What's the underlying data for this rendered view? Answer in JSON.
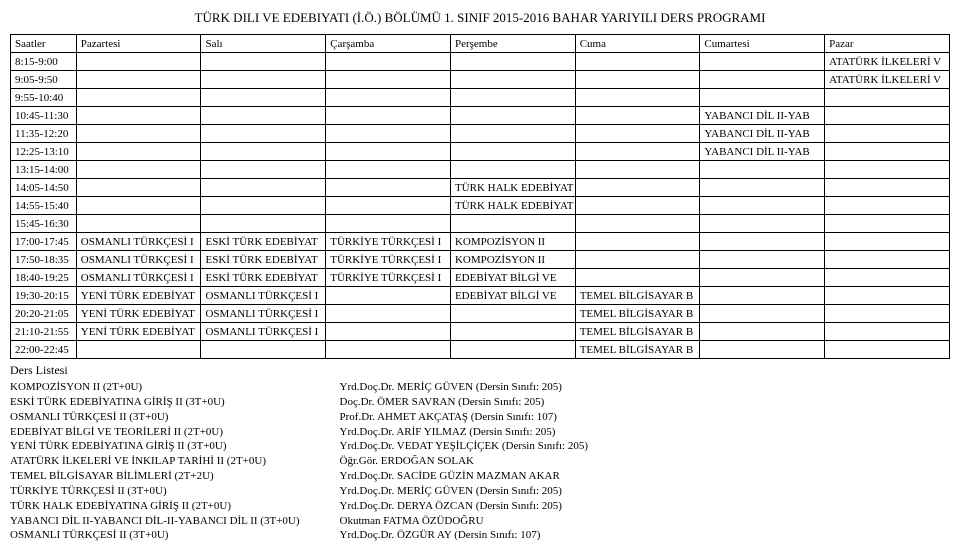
{
  "title": "TÜRK DILI VE EDEBIYATI (İ.Ö.) BÖLÜMÜ 1. SINIF 2015-2016 BAHAR YARIYILI DERS PROGRAMI",
  "header": {
    "time": "Saatler",
    "d1": "Pazartesi",
    "d2": "Salı",
    "d3": "Çarşamba",
    "d4": "Perşembe",
    "d5": "Cuma",
    "d6": "Cumartesi",
    "d7": "Pazar"
  },
  "rows": {
    "r0": {
      "time": "8:15-9:00",
      "c1": "",
      "c2": "",
      "c3": "",
      "c4": "",
      "c5": "",
      "c6": "",
      "c7": "ATATÜRK İLKELERİ V"
    },
    "r1": {
      "time": "9:05-9:50",
      "c1": "",
      "c2": "",
      "c3": "",
      "c4": "",
      "c5": "",
      "c6": "",
      "c7": "ATATÜRK İLKELERİ V"
    },
    "r2": {
      "time": "9:55-10:40",
      "c1": "",
      "c2": "",
      "c3": "",
      "c4": "",
      "c5": "",
      "c6": "",
      "c7": ""
    },
    "r3": {
      "time": "10:45-11:30",
      "c1": "",
      "c2": "",
      "c3": "",
      "c4": "",
      "c5": "",
      "c6": "YABANCI DİL II-YAB",
      "c7": ""
    },
    "r4": {
      "time": "11:35-12:20",
      "c1": "",
      "c2": "",
      "c3": "",
      "c4": "",
      "c5": "",
      "c6": "YABANCI DİL II-YAB",
      "c7": ""
    },
    "r5": {
      "time": "12:25-13:10",
      "c1": "",
      "c2": "",
      "c3": "",
      "c4": "",
      "c5": "",
      "c6": "YABANCI DİL II-YAB",
      "c7": ""
    },
    "r6": {
      "time": "13:15-14:00",
      "c1": "",
      "c2": "",
      "c3": "",
      "c4": "",
      "c5": "",
      "c6": "",
      "c7": ""
    },
    "r7": {
      "time": "14:05-14:50",
      "c1": "",
      "c2": "",
      "c3": "",
      "c4": "TÜRK HALK EDEBİYAT",
      "c5": "",
      "c6": "",
      "c7": ""
    },
    "r8": {
      "time": "14:55-15:40",
      "c1": "",
      "c2": "",
      "c3": "",
      "c4": "TÜRK HALK EDEBİYAT",
      "c5": "",
      "c6": "",
      "c7": ""
    },
    "r9": {
      "time": "15:45-16:30",
      "c1": "",
      "c2": "",
      "c3": "",
      "c4": "",
      "c5": "",
      "c6": "",
      "c7": ""
    },
    "r10": {
      "time": "17:00-17:45",
      "c1": "OSMANLI TÜRKÇESİ I",
      "c2": "ESKİ TÜRK EDEBİYAT",
      "c3": "TÜRKİYE TÜRKÇESİ I",
      "c4": "KOMPOZİSYON II",
      "c5": "",
      "c6": "",
      "c7": ""
    },
    "r11": {
      "time": "17:50-18:35",
      "c1": "OSMANLI TÜRKÇESİ I",
      "c2": "ESKİ TÜRK EDEBİYAT",
      "c3": "TÜRKİYE TÜRKÇESİ I",
      "c4": "KOMPOZİSYON II",
      "c5": "",
      "c6": "",
      "c7": ""
    },
    "r12": {
      "time": "18:40-19:25",
      "c1": "OSMANLI TÜRKÇESİ I",
      "c2": "ESKİ TÜRK EDEBİYAT",
      "c3": "TÜRKİYE TÜRKÇESİ I",
      "c4": "EDEBİYAT BİLGİ VE",
      "c5": "",
      "c6": "",
      "c7": ""
    },
    "r13": {
      "time": "19:30-20:15",
      "c1": "YENİ TÜRK EDEBİYAT",
      "c2": "OSMANLI TÜRKÇESİ I",
      "c3": "",
      "c4": "EDEBİYAT BİLGİ VE",
      "c5": "TEMEL BİLGİSAYAR B",
      "c6": "",
      "c7": ""
    },
    "r14": {
      "time": "20:20-21:05",
      "c1": "YENİ TÜRK EDEBİYAT",
      "c2": "OSMANLI TÜRKÇESİ I",
      "c3": "",
      "c4": "",
      "c5": "TEMEL BİLGİSAYAR B",
      "c6": "",
      "c7": ""
    },
    "r15": {
      "time": "21:10-21:55",
      "c1": "YENİ TÜRK EDEBİYAT",
      "c2": "OSMANLI TÜRKÇESİ I",
      "c3": "",
      "c4": "",
      "c5": "TEMEL BİLGİSAYAR B",
      "c6": "",
      "c7": ""
    },
    "r16": {
      "time": "22:00-22:45",
      "c1": "",
      "c2": "",
      "c3": "",
      "c4": "",
      "c5": "TEMEL BİLGİSAYAR B",
      "c6": "",
      "c7": ""
    }
  },
  "ders_header": "Ders Listesi",
  "courses_left": {
    "l0": "KOMPOZİSYON II (2T+0U)",
    "l1": "ESKİ TÜRK EDEBİYATINA GİRİŞ II (3T+0U)",
    "l2": "OSMANLI TÜRKÇESİ II (3T+0U)",
    "l3": "EDEBİYAT BİLGİ VE TEORİLERİ II (2T+0U)",
    "l4": "YENİ TÜRK EDEBİYATINA GİRİŞ II (3T+0U)",
    "l5": "ATATÜRK İLKELERİ VE İNKILAP TARİHİ II (2T+0U)",
    "l6": "TEMEL BİLGİSAYAR BİLİMLERİ (2T+2U)",
    "l7": "TÜRKİYE TÜRKÇESİ II (3T+0U)",
    "l8": "TÜRK HALK EDEBİYATINA GİRİŞ II (2T+0U)",
    "l9": "YABANCI DİL II-YABANCI DİL-II-YABANCI DİL II (3T+0U)",
    "l10": "OSMANLI TÜRKÇESİ II (3T+0U)"
  },
  "courses_right": {
    "r0": "Yrd.Doç.Dr. MERİÇ GÜVEN (Dersin Sınıfı: 205)",
    "r1": "Doç.Dr. ÖMER SAVRAN (Dersin Sınıfı: 205)",
    "r2": "Prof.Dr. AHMET AKÇATAŞ (Dersin Sınıfı: 107)",
    "r3": "Yrd.Doç.Dr. ARİF YILMAZ (Dersin Sınıfı: 205)",
    "r4": "Yrd.Doç.Dr. VEDAT YEŞİLÇİÇEK (Dersin Sınıfı: 205)",
    "r5": "Öğr.Gör. ERDOĞAN SOLAK",
    "r6": "Yrd.Doç.Dr. SACİDE GÜZİN MAZMAN AKAR",
    "r7": "Yrd.Doç.Dr. MERİÇ GÜVEN (Dersin Sınıfı: 205)",
    "r8": "Yrd.Doç.Dr. DERYA ÖZCAN (Dersin Sınıfı: 205)",
    "r9": "Okutman FATMA ÖZÜDOĞRU",
    "r10": "Yrd.Doç.Dr. ÖZGÜR AY (Dersin Sınıfı: 107)"
  }
}
